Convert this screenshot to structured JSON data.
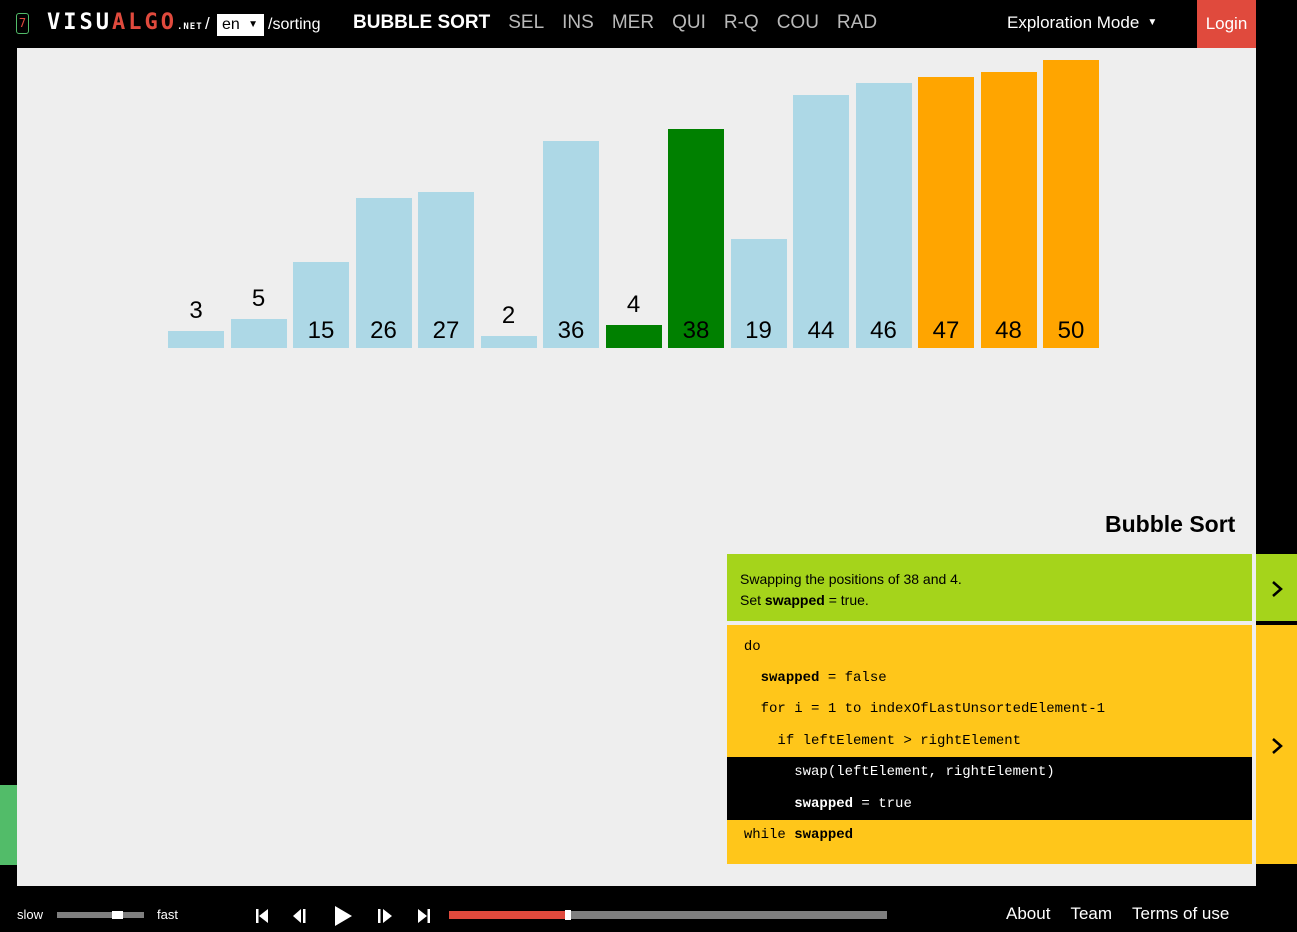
{
  "header": {
    "logo_badge": "7",
    "logo_visu": "VISU",
    "logo_algo": "ALGO",
    "logo_net": ".NET",
    "logo_slash": "/",
    "language": "en",
    "module_path": "/sorting",
    "nav": [
      "BUBBLE SORT",
      "SEL",
      "INS",
      "MER",
      "QUI",
      "R-Q",
      "COU",
      "RAD"
    ],
    "mode": "Exploration Mode",
    "login_label": "Login"
  },
  "array": {
    "values": [
      3,
      5,
      15,
      26,
      27,
      2,
      36,
      4,
      38,
      19,
      44,
      46,
      47,
      48,
      50
    ],
    "states": [
      "unsorted",
      "unsorted",
      "unsorted",
      "unsorted",
      "unsorted",
      "unsorted",
      "unsorted",
      "active",
      "active",
      "unsorted",
      "unsorted",
      "unsorted",
      "sorted",
      "sorted",
      "sorted"
    ],
    "max_value": 50
  },
  "colors": {
    "unsorted": "#add8e6",
    "active": "#008000",
    "sorted": "#ffa500",
    "status_bg": "#a5d41b",
    "code_bg": "#ffc61a",
    "accent_red": "#e04a3d",
    "green_tab": "#52bc69"
  },
  "panel": {
    "title": "Bubble Sort",
    "status_line1": "Swapping the positions of 38 and 4.",
    "status_line2_prefix": "Set ",
    "status_line2_bold": "swapped",
    "status_line2_suffix": " = true.",
    "status_toggle_icon": "chevron-right-icon",
    "code_toggle_icon": "chevron-right-icon"
  },
  "code": {
    "lines": [
      {
        "indent": "",
        "bold": "",
        "text": "do",
        "highlight": false
      },
      {
        "indent": "  ",
        "bold": "swapped",
        "text": " = false",
        "highlight": false
      },
      {
        "indent": "  ",
        "bold": "",
        "text": "for i = 1 to indexOfLastUnsortedElement-1",
        "highlight": false
      },
      {
        "indent": "    ",
        "bold": "",
        "text": "if leftElement > rightElement",
        "highlight": false
      },
      {
        "indent": "      ",
        "bold": "",
        "text": "swap(leftElement, rightElement)",
        "highlight": true
      },
      {
        "indent": "      ",
        "bold": "swapped",
        "text": " = true",
        "highlight": true
      },
      {
        "indent": "",
        "bold": "",
        "text": "while ",
        "bold_after": "swapped",
        "highlight": false
      }
    ]
  },
  "controls": {
    "speed_slow": "slow",
    "speed_fast": "fast",
    "speed_level": 0.63,
    "progress": 0.27
  },
  "footer": {
    "links": [
      "About",
      "Team",
      "Terms of use"
    ]
  }
}
